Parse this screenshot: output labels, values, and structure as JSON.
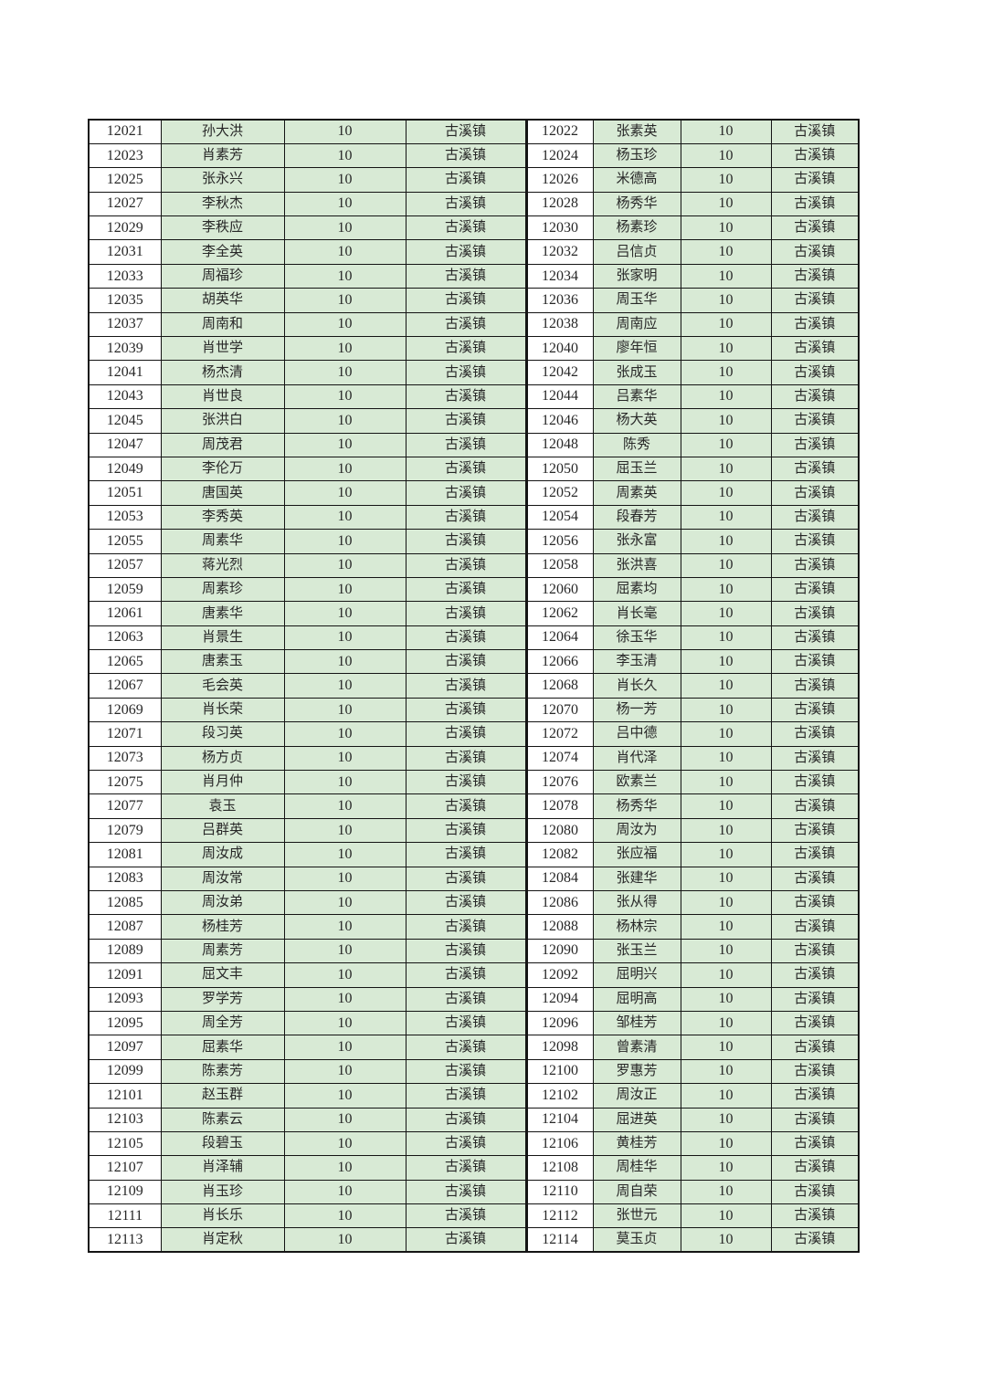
{
  "colors": {
    "cell_fill": "#d8ead5",
    "id_fill": "#ffffff",
    "border": "#141414",
    "text": "#272727",
    "page_background": "#ffffff"
  },
  "table": {
    "value": "10",
    "town": "古溪镇",
    "rows": [
      [
        "12021",
        "孙大洪",
        "12022",
        "张素英"
      ],
      [
        "12023",
        "肖素芳",
        "12024",
        "杨玉珍"
      ],
      [
        "12025",
        "张永兴",
        "12026",
        "米德高"
      ],
      [
        "12027",
        "李秋杰",
        "12028",
        "杨秀华"
      ],
      [
        "12029",
        "李秩应",
        "12030",
        "杨素珍"
      ],
      [
        "12031",
        "李全英",
        "12032",
        "吕信贞"
      ],
      [
        "12033",
        "周福珍",
        "12034",
        "张家明"
      ],
      [
        "12035",
        "胡英华",
        "12036",
        "周玉华"
      ],
      [
        "12037",
        "周南和",
        "12038",
        "周南应"
      ],
      [
        "12039",
        "肖世学",
        "12040",
        "廖年恒"
      ],
      [
        "12041",
        "杨杰清",
        "12042",
        "张成玉"
      ],
      [
        "12043",
        "肖世良",
        "12044",
        "吕素华"
      ],
      [
        "12045",
        "张洪白",
        "12046",
        "杨大英"
      ],
      [
        "12047",
        "周茂君",
        "12048",
        "陈秀"
      ],
      [
        "12049",
        "李伦万",
        "12050",
        "屈玉兰"
      ],
      [
        "12051",
        "唐国英",
        "12052",
        "周素英"
      ],
      [
        "12053",
        "李秀英",
        "12054",
        "段春芳"
      ],
      [
        "12055",
        "周素华",
        "12056",
        "张永富"
      ],
      [
        "12057",
        "蒋光烈",
        "12058",
        "张洪喜"
      ],
      [
        "12059",
        "周素珍",
        "12060",
        "屈素均"
      ],
      [
        "12061",
        "唐素华",
        "12062",
        "肖长毫"
      ],
      [
        "12063",
        "肖景生",
        "12064",
        "徐玉华"
      ],
      [
        "12065",
        "唐素玉",
        "12066",
        "李玉清"
      ],
      [
        "12067",
        "毛会英",
        "12068",
        "肖长久"
      ],
      [
        "12069",
        "肖长荣",
        "12070",
        "杨一芳"
      ],
      [
        "12071",
        "段习英",
        "12072",
        "吕中德"
      ],
      [
        "12073",
        "杨方贞",
        "12074",
        "肖代泽"
      ],
      [
        "12075",
        "肖月仲",
        "12076",
        "欧素兰"
      ],
      [
        "12077",
        "袁玉",
        "12078",
        "杨秀华"
      ],
      [
        "12079",
        "吕群英",
        "12080",
        "周汝为"
      ],
      [
        "12081",
        "周汝成",
        "12082",
        "张应福"
      ],
      [
        "12083",
        "周汝常",
        "12084",
        "张建华"
      ],
      [
        "12085",
        "周汝弟",
        "12086",
        "张从得"
      ],
      [
        "12087",
        "杨桂芳",
        "12088",
        "杨林宗"
      ],
      [
        "12089",
        "周素芳",
        "12090",
        "张玉兰"
      ],
      [
        "12091",
        "屈文丰",
        "12092",
        "屈明兴"
      ],
      [
        "12093",
        "罗学芳",
        "12094",
        "屈明高"
      ],
      [
        "12095",
        "周全芳",
        "12096",
        "邹桂芳"
      ],
      [
        "12097",
        "屈素华",
        "12098",
        "曾素清"
      ],
      [
        "12099",
        "陈素芳",
        "12100",
        "罗惠芳"
      ],
      [
        "12101",
        "赵玉群",
        "12102",
        "周汝正"
      ],
      [
        "12103",
        "陈素云",
        "12104",
        "屈进英"
      ],
      [
        "12105",
        "段碧玉",
        "12106",
        "黄桂芳"
      ],
      [
        "12107",
        "肖泽辅",
        "12108",
        "周桂华"
      ],
      [
        "12109",
        "肖玉珍",
        "12110",
        "周自荣"
      ],
      [
        "12111",
        "肖长乐",
        "12112",
        "张世元"
      ],
      [
        "12113",
        "肖定秋",
        "12114",
        "莫玉贞"
      ]
    ]
  }
}
